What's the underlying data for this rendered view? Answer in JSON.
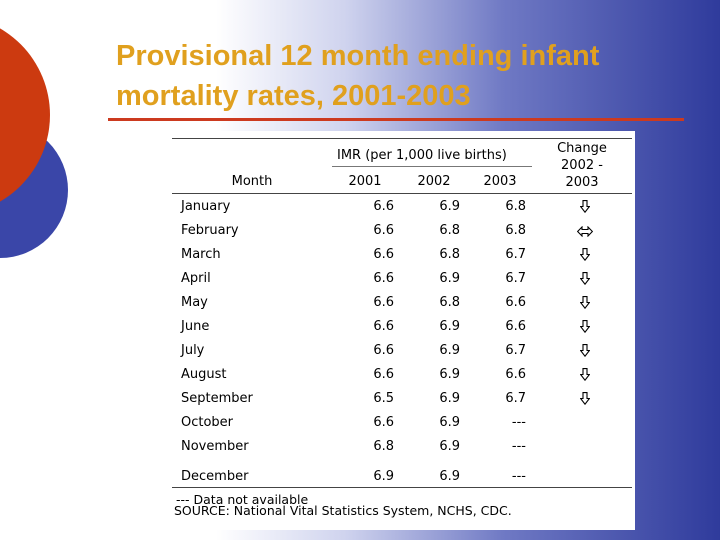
{
  "slide": {
    "title": "Provisional 12 month ending infant mortality rates, 2001-2003"
  },
  "colors": {
    "title": "#e0a01e",
    "accent_red": "#cc3a1f",
    "accent_blue": "#2f3b9c"
  },
  "table": {
    "group_header": "IMR (per 1,000 live births)",
    "month_header": "Month",
    "year_headers": [
      "2001",
      "2002",
      "2003"
    ],
    "change_header": "Change 2002 - 2003",
    "change_header_lines": [
      "Change",
      "2002 -",
      "2003"
    ],
    "rows": [
      {
        "month": "January",
        "v2001": "6.6",
        "v2002": "6.9",
        "v2003": "6.8",
        "change": "down-arrow-icon"
      },
      {
        "month": "February",
        "v2001": "6.6",
        "v2002": "6.8",
        "v2003": "6.8",
        "change": "left-right-arrow-icon"
      },
      {
        "month": "March",
        "v2001": "6.6",
        "v2002": "6.8",
        "v2003": "6.7",
        "change": "down-arrow-icon"
      },
      {
        "month": "April",
        "v2001": "6.6",
        "v2002": "6.9",
        "v2003": "6.7",
        "change": "down-arrow-icon"
      },
      {
        "month": "May",
        "v2001": "6.6",
        "v2002": "6.8",
        "v2003": "6.6",
        "change": "down-arrow-icon"
      },
      {
        "month": "June",
        "v2001": "6.6",
        "v2002": "6.9",
        "v2003": "6.6",
        "change": "down-arrow-icon"
      },
      {
        "month": "July",
        "v2001": "6.6",
        "v2002": "6.9",
        "v2003": "6.7",
        "change": "down-arrow-icon"
      },
      {
        "month": "August",
        "v2001": "6.6",
        "v2002": "6.9",
        "v2003": "6.6",
        "change": "down-arrow-icon"
      },
      {
        "month": "September",
        "v2001": "6.5",
        "v2002": "6.9",
        "v2003": "6.7",
        "change": "down-arrow-icon"
      },
      {
        "month": "October",
        "v2001": "6.6",
        "v2002": "6.9",
        "v2003": "---",
        "change": ""
      },
      {
        "month": "November",
        "v2001": "6.8",
        "v2002": "6.9",
        "v2003": "---",
        "change": ""
      },
      {
        "month": "December",
        "v2001": "6.9",
        "v2002": "6.9",
        "v2003": "---",
        "change": ""
      }
    ],
    "footnote": "--- Data not available",
    "source": "SOURCE: National Vital Statistics System, NCHS, CDC."
  }
}
